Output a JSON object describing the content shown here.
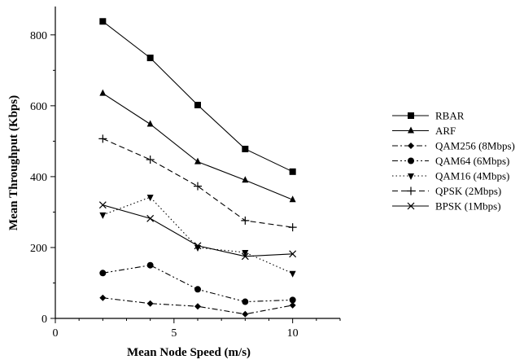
{
  "chart_data": {
    "type": "line",
    "xlabel": "Mean Node Speed (m/s)",
    "ylabel": "Mean Throughput (Kbps)",
    "xlim": [
      0,
      12
    ],
    "ylim": [
      0,
      880
    ],
    "x_ticks": [
      0,
      5,
      10
    ],
    "x_tick_labels": [
      "0",
      "5",
      "10"
    ],
    "y_ticks": [
      0,
      200,
      400,
      600,
      800
    ],
    "y_tick_labels": [
      "0",
      "200",
      "400",
      "600",
      "800"
    ],
    "grid": false,
    "legend_position": "right",
    "x": [
      2,
      4,
      6,
      8,
      10
    ],
    "series": [
      {
        "name": "RBAR",
        "values": [
          838,
          735,
          602,
          478,
          414
        ],
        "marker": "square",
        "dash": "solid"
      },
      {
        "name": "ARF",
        "values": [
          635,
          548,
          442,
          390,
          335
        ],
        "marker": "triangle-up",
        "dash": "solid"
      },
      {
        "name": "QAM256 (8Mbps)",
        "values": [
          58,
          42,
          34,
          12,
          37
        ],
        "marker": "diamond",
        "dash": "dash-dot"
      },
      {
        "name": "QAM64 (6Mbps)",
        "values": [
          128,
          150,
          82,
          47,
          52
        ],
        "marker": "circle",
        "dash": "dash-dot-dot"
      },
      {
        "name": "QAM16 (4Mbps)",
        "values": [
          292,
          342,
          200,
          186,
          127
        ],
        "marker": "triangle-down",
        "dash": "dotted"
      },
      {
        "name": "QPSK (2Mbps)",
        "values": [
          507,
          448,
          373,
          276,
          257
        ],
        "marker": "plus",
        "dash": "dashed"
      },
      {
        "name": "BPSK (1Mbps)",
        "values": [
          320,
          282,
          205,
          175,
          182
        ],
        "marker": "cross",
        "dash": "solid"
      }
    ]
  }
}
